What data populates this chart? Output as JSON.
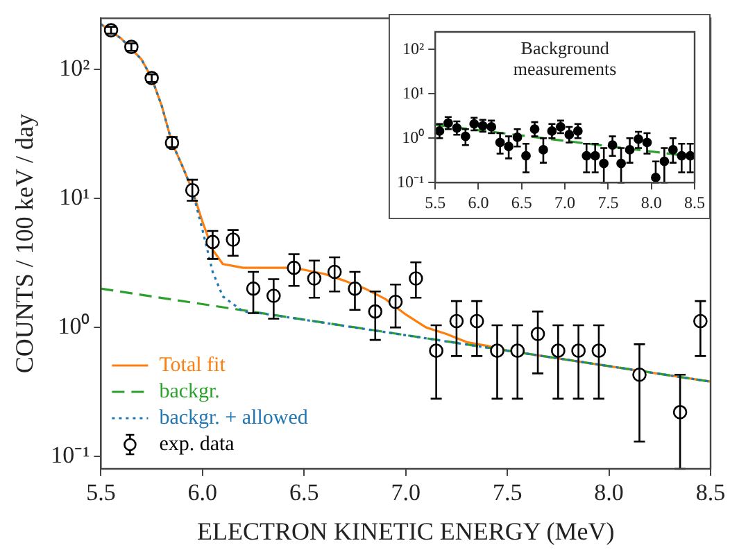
{
  "chart_data": [
    {
      "type": "scatter",
      "xlabel": "ELECTRON KINETIC ENERGY (MeV)",
      "ylabel": "COUNTS / 100 keV / day",
      "log": "y",
      "grid": false,
      "legend": "bottom left",
      "xlim": [
        5.5,
        8.5
      ],
      "xticks": [
        5.5,
        {
          "value": 6,
          "label": "6.0"
        },
        6.5,
        {
          "value": 7,
          "label": "7.0"
        },
        7.5,
        {
          "value": 8,
          "label": "8.0"
        },
        8.5
      ],
      "ylim": [
        0.08,
        250
      ],
      "yticks": [
        {
          "value": 0.1,
          "label": "10⁻¹"
        },
        {
          "value": 1,
          "label": "10⁰"
        },
        {
          "value": 10,
          "label": "10¹"
        },
        {
          "value": 100,
          "label": "10²"
        }
      ],
      "series": [
        {
          "name": "Total fit",
          "type": "line",
          "color": "#ff7f0e",
          "line_style": "solid",
          "x": [
            5.5,
            5.6,
            5.7,
            5.75,
            5.8,
            5.85,
            5.9,
            5.95,
            6.0,
            6.05,
            6.1,
            6.15,
            6.2,
            6.3,
            6.45,
            6.5,
            6.6,
            6.7,
            6.8,
            6.9,
            7.0,
            7.1,
            7.2,
            7.3,
            7.4,
            7.5,
            8.5
          ],
          "values": [
            225,
            174,
            120,
            86,
            52,
            27,
            18,
            11.6,
            6.6,
            4.0,
            3.1,
            3.0,
            2.9,
            2.9,
            2.9,
            2.8,
            2.6,
            2.3,
            2.0,
            1.66,
            1.26,
            1.0,
            0.89,
            0.77,
            0.72,
            0.66,
            0.38
          ]
        },
        {
          "name": "backgr.",
          "type": "line",
          "color": "#2ca02c",
          "line_style": "dashed",
          "x": [
            5.5,
            8.5
          ],
          "values": [
            2.0,
            0.38
          ]
        },
        {
          "name": "backgr. + allowed",
          "type": "line",
          "color": "#1f77b4",
          "line_style": "dotted",
          "x": [
            5.5,
            5.6,
            5.7,
            5.75,
            5.8,
            5.85,
            5.9,
            5.95,
            6.0,
            6.05,
            6.1,
            6.2,
            6.3,
            8.5
          ],
          "values": [
            225,
            174,
            120,
            86,
            52,
            27,
            18,
            11.6,
            5.7,
            2.7,
            1.74,
            1.33,
            1.28,
            0.38
          ]
        },
        {
          "name": "exp. data",
          "color": "#000000",
          "marker": "circle",
          "x": [
            5.55,
            5.65,
            5.75,
            5.85,
            5.95,
            6.05,
            6.15,
            6.25,
            6.35,
            6.45,
            6.55,
            6.65,
            6.75,
            6.85,
            6.95,
            7.05,
            7.15,
            7.25,
            7.35,
            7.45,
            7.55,
            7.65,
            7.75,
            7.85,
            7.95,
            8.15,
            8.35,
            8.45
          ],
          "values": [
            202,
            150,
            86,
            27,
            11.6,
            4.6,
            4.8,
            2.0,
            1.76,
            2.9,
            2.4,
            2.7,
            2.0,
            1.33,
            1.58,
            2.4,
            0.66,
            1.12,
            1.12,
            0.66,
            0.66,
            0.89,
            0.66,
            0.66,
            0.66,
            0.43,
            0.22,
            1.12
          ],
          "errors": [
            [
              190,
              215
            ],
            [
              140,
              160
            ],
            [
              80,
              92
            ],
            [
              25,
              30
            ],
            [
              9.6,
              14
            ],
            [
              3.4,
              5.6
            ],
            [
              3.6,
              5.7
            ],
            [
              1.29,
              2.7
            ],
            [
              1.17,
              2.37
            ],
            [
              2.1,
              3.7
            ],
            [
              1.7,
              3.3
            ],
            [
              1.9,
              3.5
            ],
            [
              1.37,
              2.7
            ],
            [
              0.8,
              1.9
            ],
            [
              1.0,
              2.15
            ],
            [
              1.7,
              3.2
            ],
            [
              0.28,
              1.04
            ],
            [
              0.6,
              1.6
            ],
            [
              0.6,
              1.6
            ],
            [
              0.28,
              1.04
            ],
            [
              0.28,
              1.04
            ],
            [
              0.44,
              1.33
            ],
            [
              0.28,
              1.04
            ],
            [
              0.28,
              1.04
            ],
            [
              0.28,
              1.04
            ],
            [
              0.13,
              0.74
            ],
            [
              0.08,
              0.43
            ],
            [
              0.6,
              1.6
            ]
          ]
        }
      ]
    },
    {
      "type": "scatter",
      "title": "Background measurements",
      "log": "y",
      "grid": false,
      "xlim": [
        5.5,
        8.5
      ],
      "xticks": [
        5.5,
        {
          "value": 6,
          "label": "6.0"
        },
        6.5,
        {
          "value": 7,
          "label": "7.0"
        },
        7.5,
        {
          "value": 8,
          "label": "8.0"
        },
        8.5
      ],
      "ylim": [
        0.1,
        250
      ],
      "yticks": [
        {
          "value": 0.1,
          "label": "10⁻¹"
        },
        {
          "value": 1,
          "label": "10⁰"
        },
        {
          "value": 10,
          "label": "10¹"
        },
        {
          "value": 100,
          "label": "10²"
        }
      ],
      "series": [
        {
          "type": "line",
          "color": "#2ca02c",
          "line_style": "dashed",
          "x": [
            5.5,
            8.5
          ],
          "values": [
            2.0,
            0.38
          ]
        },
        {
          "color": "#000000",
          "marker": "circle",
          "x": [
            5.55,
            5.65,
            5.75,
            5.85,
            5.95,
            6.05,
            6.15,
            6.25,
            6.35,
            6.45,
            6.55,
            6.65,
            6.75,
            6.85,
            6.95,
            7.05,
            7.15,
            7.25,
            7.35,
            7.45,
            7.55,
            7.65,
            7.75,
            7.85,
            7.95,
            8.05,
            8.15,
            8.25,
            8.35,
            8.45
          ],
          "values": [
            1.45,
            2.2,
            1.7,
            1.1,
            2.1,
            1.9,
            1.8,
            0.8,
            0.65,
            1.05,
            0.4,
            1.6,
            0.55,
            1.45,
            1.8,
            1.2,
            1.45,
            0.4,
            0.4,
            0.27,
            0.7,
            0.27,
            0.55,
            0.95,
            0.8,
            0.13,
            0.3,
            0.55,
            0.4,
            0.4
          ],
          "errors": [
            [
              1.0,
              2.1
            ],
            [
              1.6,
              3.0
            ],
            [
              1.2,
              2.4
            ],
            [
              0.7,
              1.6
            ],
            [
              1.5,
              2.9
            ],
            [
              1.4,
              2.6
            ],
            [
              1.3,
              2.5
            ],
            [
              0.45,
              1.3
            ],
            [
              0.35,
              1.1
            ],
            [
              0.65,
              1.6
            ],
            [
              0.17,
              0.75
            ],
            [
              1.1,
              2.3
            ],
            [
              0.28,
              1.0
            ],
            [
              1.0,
              2.1
            ],
            [
              1.3,
              2.5
            ],
            [
              0.8,
              1.8
            ],
            [
              1.0,
              2.1
            ],
            [
              0.17,
              0.75
            ],
            [
              0.17,
              0.75
            ],
            [
              0.1,
              0.6
            ],
            [
              0.4,
              1.1
            ],
            [
              0.1,
              0.6
            ],
            [
              0.28,
              1.0
            ],
            [
              0.6,
              1.4
            ],
            [
              0.45,
              1.3
            ],
            [
              0.1,
              0.3
            ],
            [
              0.1,
              0.6
            ],
            [
              0.28,
              1.0
            ],
            [
              0.17,
              0.75
            ],
            [
              0.17,
              0.75
            ]
          ]
        }
      ]
    }
  ]
}
